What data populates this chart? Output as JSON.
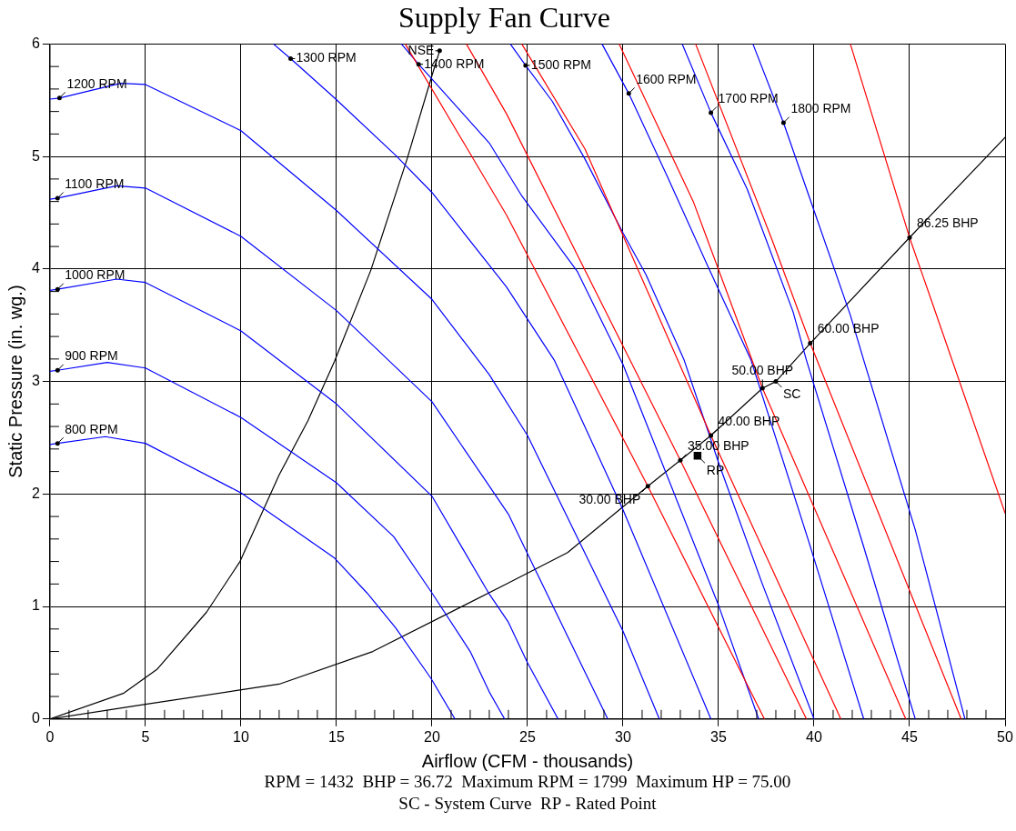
{
  "chart_data": {
    "type": "line",
    "title": "Supply Fan Curve",
    "xlabel": "Airflow (CFM - thousands)",
    "ylabel": "Static Pressure (in. wg.)",
    "xlim": [
      0,
      50
    ],
    "ylim": [
      0,
      6
    ],
    "grid": true,
    "xticks": [
      0,
      {
        "value": 1,
        "label": null
      },
      {
        "value": 2,
        "label": null
      },
      {
        "value": 3,
        "label": null
      },
      {
        "value": 4,
        "label": null
      },
      5,
      {
        "value": 6,
        "label": null
      },
      {
        "value": 7,
        "label": null
      },
      {
        "value": 8,
        "label": null
      },
      {
        "value": 9,
        "label": null
      },
      10,
      {
        "value": 11,
        "label": null
      },
      {
        "value": 12,
        "label": null
      },
      {
        "value": 13,
        "label": null
      },
      {
        "value": 14,
        "label": null
      },
      15,
      {
        "value": 16,
        "label": null
      },
      {
        "value": 17,
        "label": null
      },
      {
        "value": 18,
        "label": null
      },
      {
        "value": 19,
        "label": null
      },
      20,
      {
        "value": 21,
        "label": null
      },
      {
        "value": 22,
        "label": null
      },
      {
        "value": 23,
        "label": null
      },
      {
        "value": 24,
        "label": null
      },
      25,
      {
        "value": 26,
        "label": null
      },
      {
        "value": 27,
        "label": null
      },
      {
        "value": 28,
        "label": null
      },
      {
        "value": 29,
        "label": null
      },
      30,
      {
        "value": 31,
        "label": null
      },
      {
        "value": 32,
        "label": null
      },
      {
        "value": 33,
        "label": null
      },
      {
        "value": 34,
        "label": null
      },
      35,
      {
        "value": 36,
        "label": null
      },
      {
        "value": 37,
        "label": null
      },
      {
        "value": 38,
        "label": null
      },
      {
        "value": 39,
        "label": null
      },
      40,
      {
        "value": 41,
        "label": null
      },
      {
        "value": 42,
        "label": null
      },
      {
        "value": 43,
        "label": null
      },
      {
        "value": 44,
        "label": null
      },
      45,
      {
        "value": 46,
        "label": null
      },
      {
        "value": 47,
        "label": null
      },
      {
        "value": 48,
        "label": null
      },
      {
        "value": 49,
        "label": null
      },
      50
    ],
    "yticks": [
      0,
      {
        "value": 0.2,
        "label": null
      },
      {
        "value": 0.4,
        "label": null
      },
      {
        "value": 0.6,
        "label": null
      },
      {
        "value": 0.8,
        "label": null
      },
      1,
      {
        "value": 1.2,
        "label": null
      },
      {
        "value": 1.4,
        "label": null
      },
      {
        "value": 1.6,
        "label": null
      },
      {
        "value": 1.8,
        "label": null
      },
      2,
      {
        "value": 2.2,
        "label": null
      },
      {
        "value": 2.4,
        "label": null
      },
      {
        "value": 2.6,
        "label": null
      },
      {
        "value": 2.8,
        "label": null
      },
      3,
      {
        "value": 3.2,
        "label": null
      },
      {
        "value": 3.4,
        "label": null
      },
      {
        "value": 3.6,
        "label": null
      },
      {
        "value": 3.8,
        "label": null
      },
      4,
      {
        "value": 4.2,
        "label": null
      },
      {
        "value": 4.4,
        "label": null
      },
      {
        "value": 4.6,
        "label": null
      },
      {
        "value": 4.8,
        "label": null
      },
      5,
      {
        "value": 5.2,
        "label": null
      },
      {
        "value": 5.4,
        "label": null
      },
      {
        "value": 5.6,
        "label": null
      },
      {
        "value": 5.8,
        "label": null
      },
      6
    ],
    "series": [
      {
        "color": "#ff0000",
        "x": [
          18.6,
          23.9,
          31.3,
          37.4
        ],
        "values": [
          6,
          4.48,
          2.07,
          0
        ]
      },
      {
        "color": "#ff0000",
        "x": [
          21.8,
          23.9,
          33.0,
          39.6
        ],
        "values": [
          6,
          5.38,
          2.3,
          0
        ]
      },
      {
        "color": "#ff0000",
        "x": [
          24.7,
          28.0,
          34.6,
          41.4
        ],
        "values": [
          6,
          5.07,
          2.52,
          0
        ]
      },
      {
        "color": "#ff0000",
        "x": [
          29.8,
          33.7,
          37.3,
          44.8
        ],
        "values": [
          6,
          4.59,
          2.94,
          0
        ]
      },
      {
        "color": "#ff0000",
        "x": [
          33.8,
          37.8,
          39.8,
          47.7
        ],
        "values": [
          6,
          4.26,
          3.34,
          0
        ]
      },
      {
        "color": "#ff0000",
        "x": [
          41.9,
          45.0,
          50
        ],
        "values": [
          6,
          4.28,
          1.83
        ]
      },
      {
        "color": "#0000ff",
        "x": [
          0,
          0.4,
          2.9,
          5,
          10,
          14.9,
          16.6,
          18.1,
          19.95,
          21.2
        ],
        "values": [
          2.44,
          2.45,
          2.51,
          2.45,
          2.01,
          1.43,
          1.12,
          0.81,
          0.36,
          0
        ]
      },
      {
        "color": "#0000ff",
        "x": [
          0,
          0.4,
          3,
          5,
          10,
          15,
          18,
          20,
          22,
          23,
          23.8
        ],
        "values": [
          3.09,
          3.1,
          3.17,
          3.12,
          2.68,
          2.1,
          1.62,
          1.12,
          0.6,
          0.24,
          0
        ]
      },
      {
        "color": "#0000ff",
        "x": [
          0,
          0.4,
          3.5,
          5,
          10,
          15,
          20,
          23,
          24,
          25,
          26.6
        ],
        "values": [
          3.81,
          3.82,
          3.91,
          3.88,
          3.45,
          2.8,
          1.98,
          1.11,
          0.86,
          0.5,
          0
        ]
      },
      {
        "color": "#0000ff",
        "x": [
          0,
          0.4,
          3.5,
          5,
          10,
          15,
          20,
          23,
          24,
          25,
          29.2
        ],
        "values": [
          4.62,
          4.63,
          4.74,
          4.72,
          4.29,
          3.63,
          2.82,
          2.07,
          1.82,
          1.47,
          0
        ]
      },
      {
        "color": "#0000ff",
        "x": [
          0,
          0.5,
          3.7,
          5,
          10,
          15,
          20,
          23,
          25,
          30,
          31.9
        ],
        "values": [
          5.51,
          5.52,
          5.65,
          5.64,
          5.23,
          4.52,
          3.73,
          3.06,
          2.52,
          0.78,
          0
        ]
      },
      {
        "color": "#0000ff",
        "x": [
          11.7,
          12.6,
          14.9,
          18.1,
          20,
          23.9,
          26.4,
          30,
          34.6
        ],
        "values": [
          6,
          5.87,
          5.52,
          5.01,
          4.68,
          3.84,
          3.19,
          1.86,
          0
        ]
      },
      {
        "color": "#0000ff",
        "x": [
          18.4,
          19.3,
          23,
          24.7,
          27.6,
          30,
          35,
          37.1
        ],
        "values": [
          6,
          5.82,
          5.12,
          4.65,
          3.98,
          3.15,
          1.01,
          0
        ]
      },
      {
        "color": "#0000ff",
        "x": [
          24.1,
          24.9,
          26.3,
          28,
          30,
          31.2,
          33.2,
          35,
          37.25,
          40
        ],
        "values": [
          6,
          5.81,
          5.49,
          4.98,
          4.32,
          3.95,
          3.19,
          2.28,
          1.22,
          0
        ]
      },
      {
        "color": "#0000ff",
        "x": [
          28.9,
          30.3,
          32.3,
          34.4,
          36.7,
          39.7,
          42.6
        ],
        "values": [
          6,
          5.56,
          4.83,
          4.04,
          3.19,
          1.59,
          0
        ]
      },
      {
        "color": "#0000ff",
        "x": [
          33.1,
          34.6,
          36.5,
          38.9,
          39.6,
          42.6,
          45.3
        ],
        "values": [
          6,
          5.39,
          4.71,
          3.62,
          3.19,
          1.53,
          0
        ]
      },
      {
        "color": "#0000ff",
        "x": [
          36.8,
          38.4,
          40.1,
          41.9,
          42.6,
          45.3,
          47.9
        ],
        "values": [
          6,
          5.3,
          4.47,
          3.59,
          3.19,
          1.68,
          0
        ]
      },
      {
        "color": "#000000",
        "x": [
          0,
          5,
          12.0,
          16.9,
          23.9,
          27.1,
          31.3,
          33.0,
          34.6,
          37.3,
          38.0,
          39.8,
          45.0,
          50
        ],
        "values": [
          0,
          0.13,
          0.31,
          0.6,
          1.2,
          1.48,
          2.07,
          2.3,
          2.52,
          2.94,
          3.0,
          3.34,
          4.28,
          5.17
        ]
      },
      {
        "color": "#000000",
        "x": [
          0,
          3.87,
          5.6,
          8.2,
          9.95,
          12.0,
          13.5,
          14.9,
          16.8,
          18.7,
          20.0,
          20.4
        ],
        "values": [
          0,
          0.23,
          0.44,
          0.95,
          1.4,
          2.17,
          2.65,
          3.18,
          3.99,
          4.98,
          5.72,
          5.94
        ]
      },
      {
        "type": "scatter",
        "marker": "square",
        "color": "#000000",
        "x": [
          33.9
        ],
        "values": [
          2.34
        ]
      }
    ],
    "annotations": [
      {
        "text": "800 RPM",
        "x": 0.4,
        "y": 2.45
      },
      {
        "text": "900 RPM",
        "x": 0.4,
        "y": 3.1
      },
      {
        "text": "1000 RPM",
        "x": 0.4,
        "y": 3.82
      },
      {
        "text": "1100 RPM",
        "x": 0.4,
        "y": 4.63
      },
      {
        "text": "1200 RPM",
        "x": 0.5,
        "y": 5.52
      },
      {
        "text": "1300 RPM",
        "x": 12.6,
        "y": 5.87
      },
      {
        "text": "1400 RPM",
        "x": 19.3,
        "y": 5.82
      },
      {
        "text": "NSE",
        "x": 20.4,
        "y": 5.94
      },
      {
        "text": "1500 RPM",
        "x": 24.9,
        "y": 5.81
      },
      {
        "text": "1600 RPM",
        "x": 30.3,
        "y": 5.56
      },
      {
        "text": "1700 RPM",
        "x": 34.6,
        "y": 5.39
      },
      {
        "text": "1800 RPM",
        "x": 38.4,
        "y": 5.3
      },
      {
        "text": "30.00 BHP",
        "x": 31.3,
        "y": 2.07
      },
      {
        "text": "35.00 BHP",
        "x": 33.0,
        "y": 2.3
      },
      {
        "text": "40.00 BHP",
        "x": 34.6,
        "y": 2.52
      },
      {
        "text": "50.00 BHP",
        "x": 37.3,
        "y": 2.94
      },
      {
        "text": "60.00 BHP",
        "x": 39.8,
        "y": 3.34
      },
      {
        "text": "86.25 BHP",
        "x": 45.0,
        "y": 4.28
      },
      {
        "text": "SC",
        "x": 38.0,
        "y": 3.0
      },
      {
        "text": "RP",
        "x": 33.9,
        "y": 2.34
      },
      "RPM = 1432  BHP = 36.72  Maximum RPM = 1799  Maximum HP = 75.00",
      "SC - System Curve  RP - Rated Point"
    ]
  }
}
